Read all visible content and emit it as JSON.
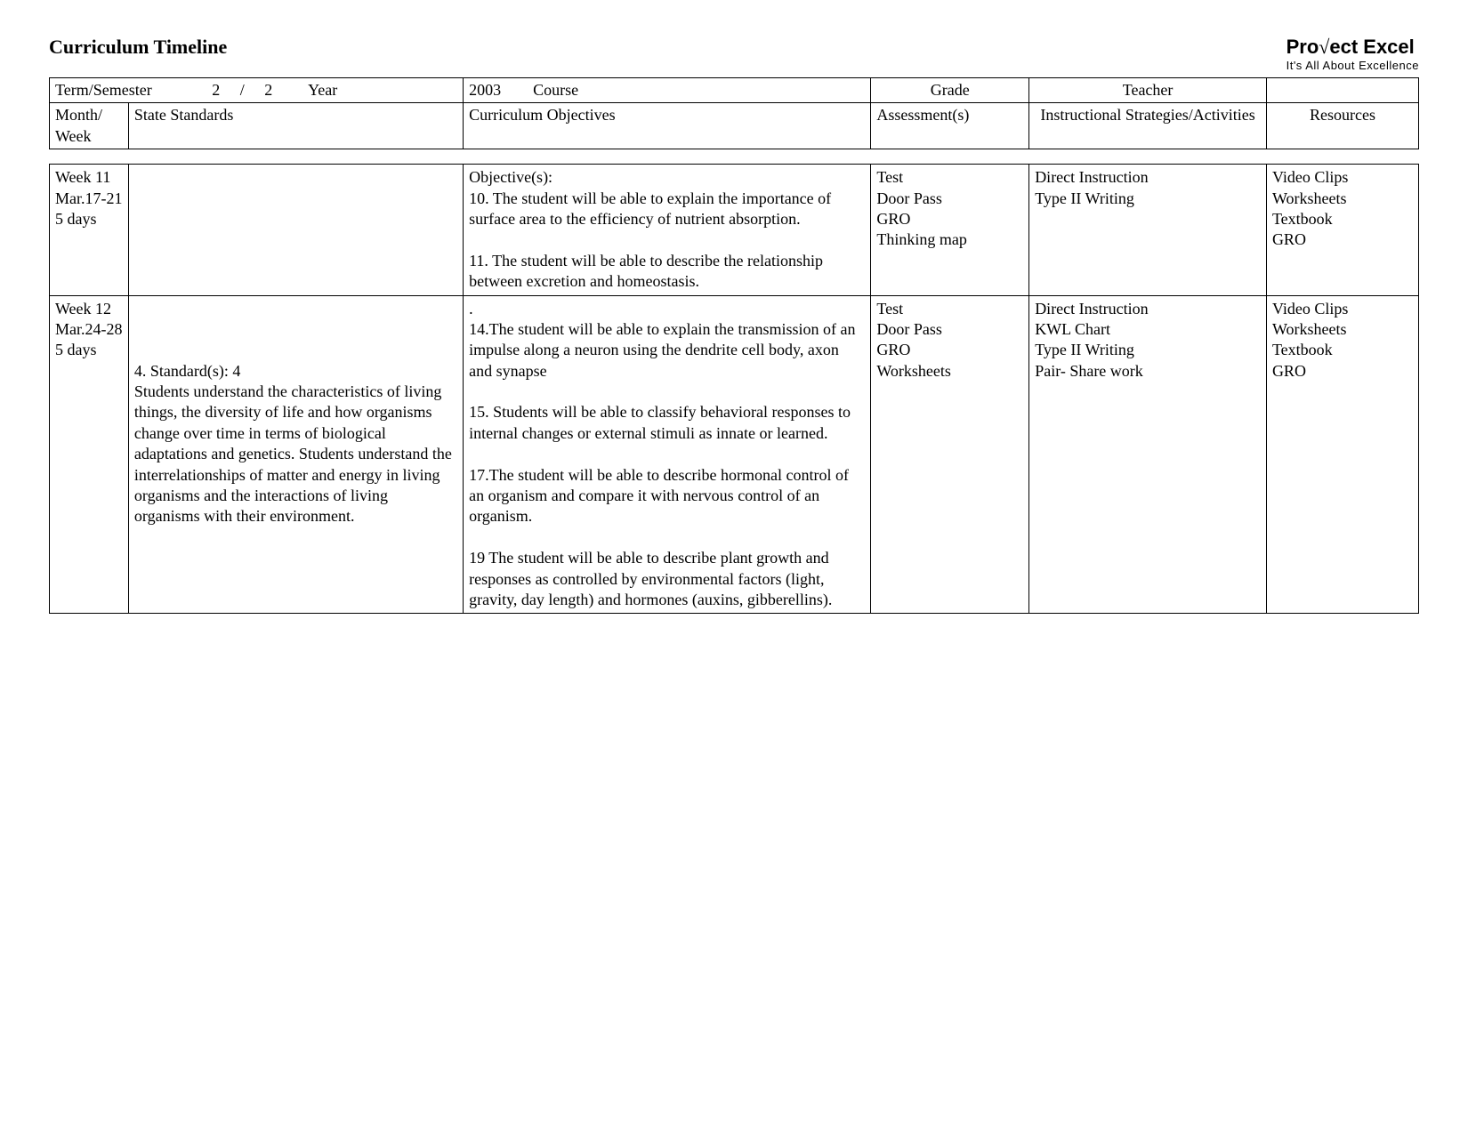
{
  "header": {
    "title": "Curriculum Timeline",
    "brand_pre": "Pro",
    "brand_radical": "√",
    "brand_post": "ect Excel",
    "brand_sub": "It's All About Excellence"
  },
  "meta": {
    "term_label": "Term/Semester",
    "term_value": "2     /     2",
    "year_label": "Year",
    "year_value": "2003",
    "course_label": "Course",
    "grade_label": "Grade",
    "teacher_label": "Teacher"
  },
  "columns": {
    "week": "Month/\nWeek",
    "standards": "State Standards",
    "objectives": "Curriculum Objectives",
    "assessment": "Assessment(s)",
    "strategies": "Instructional Strategies/Activities",
    "resources": "Resources"
  },
  "rows": [
    {
      "week": "Week 11\nMar.17-21\n5 days",
      "standards": "",
      "objectives": "Objective(s):\n10. The student will be able to explain the importance of surface area to the efficiency of nutrient absorption.\n\n11. The student will be able to describe the relationship between excretion and homeostasis.\n",
      "assessment": "Test\nDoor Pass\nGRO\nThinking map",
      "strategies": "Direct Instruction\nType II Writing",
      "resources": "Video Clips\nWorksheets\nTextbook\nGRO"
    },
    {
      "week": "Week 12\nMar.24-28\n5 days",
      "standards": "\n\n\n4. Standard(s): 4\nStudents understand the characteristics of living things, the diversity of life and how organisms change over time in terms of biological adaptations and genetics. Students understand the interrelationships of matter and energy in living organisms and the interactions of living organisms with their environment.",
      "objectives": ".\n14.The student will be able to explain the transmission of an impulse along a neuron using the dendrite cell body, axon and synapse\n\n15. Students will be able to classify behavioral responses to internal changes or external stimuli as innate or learned.\n\n17.The student will be able to describe hormonal control of an organism and compare it with nervous control of an organism.\n\n19 The student will be able to describe plant growth and responses as controlled by environmental factors (light, gravity, day length) and hormones (auxins, gibberellins).\n",
      "assessment": "Test\nDoor Pass\nGRO\nWorksheets",
      "strategies": "Direct Instruction\nKWL Chart\nType II Writing\nPair- Share work",
      "resources": "Video Clips\nWorksheets\nTextbook\nGRO"
    }
  ]
}
